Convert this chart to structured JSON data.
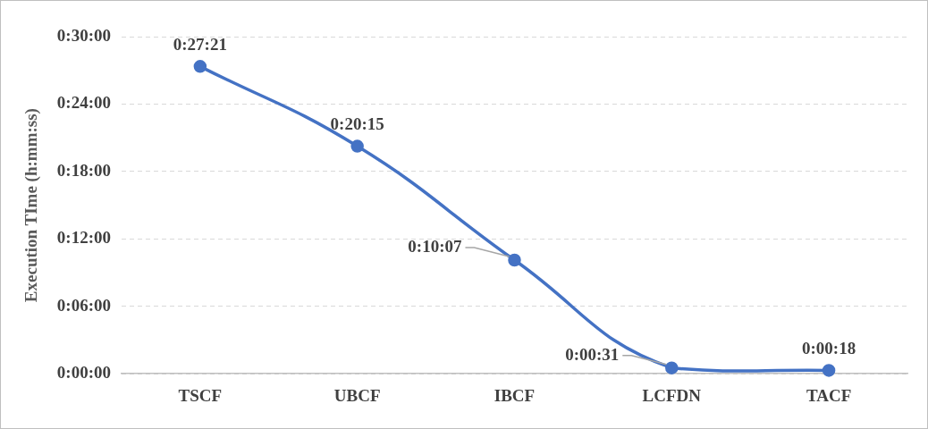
{
  "chart_data": {
    "type": "line",
    "ylabel": "Execution TIme (h:mm:ss)",
    "categories": [
      "TSCF",
      "UBCF",
      "IBCF",
      "LCFDN",
      "TACF"
    ],
    "series": [
      {
        "color": "#4472c4",
        "values": [
          1641,
          1215,
          607,
          31,
          18
        ],
        "value_labels": [
          "0:27:21",
          "0:20:15",
          "0:10:07",
          "0:00:31",
          "0:00:18"
        ]
      }
    ],
    "ylim": [
      0,
      1800
    ],
    "yticks": [
      {
        "value": 0,
        "label": "0:00:00"
      },
      {
        "value": 360,
        "label": "0:06:00"
      },
      {
        "value": 720,
        "label": "0:12:00"
      },
      {
        "value": 1080,
        "label": "0:18:00"
      },
      {
        "value": 1440,
        "label": "0:24:00"
      },
      {
        "value": 1800,
        "label": "0:30:00"
      }
    ],
    "grid": "y",
    "legend": false,
    "marker": "circle",
    "line_style": "solid"
  }
}
